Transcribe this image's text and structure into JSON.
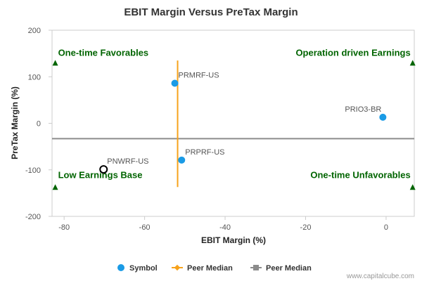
{
  "chart_data": {
    "type": "scatter",
    "title": "EBIT Margin Versus PreTax Margin",
    "xlabel": "EBIT Margin (%)",
    "ylabel": "PreTax Margin (%)",
    "xlim": [
      -83,
      7
    ],
    "ylim": [
      -200,
      200
    ],
    "x_ticks": [
      "-80",
      "-60",
      "-40",
      "-20",
      "0"
    ],
    "y_ticks": [
      "200",
      "100",
      "0",
      "-100",
      "-200"
    ],
    "points": [
      {
        "label": "PRMRF-US",
        "x": -52.5,
        "y": 86,
        "marker": "filled"
      },
      {
        "label": "PRIO3-BR",
        "x": -0.8,
        "y": 13,
        "marker": "filled"
      },
      {
        "label": "PRPRF-US",
        "x": -50.8,
        "y": -79,
        "marker": "filled"
      },
      {
        "label": "PNWRF-US",
        "x": -70.2,
        "y": -99,
        "marker": "hollow"
      }
    ],
    "peer_median_x": -51.8,
    "peer_median_y": -33,
    "quadrants": {
      "top_left": "One-time Favorables",
      "top_right": "Operation driven Earnings",
      "bottom_left": "Low Earnings Base",
      "bottom_right": "One-time Unfavorables"
    },
    "legend": [
      "Symbol",
      "Peer Median",
      "Peer Median"
    ],
    "colors": {
      "point": "#1a9be6",
      "hollow_stroke": "#000000",
      "median_x": "#f7a21b",
      "median_y": "#8c8c8c",
      "quadrant": "#006400"
    }
  },
  "footer": {
    "credit": "www.capitalcube.com"
  }
}
